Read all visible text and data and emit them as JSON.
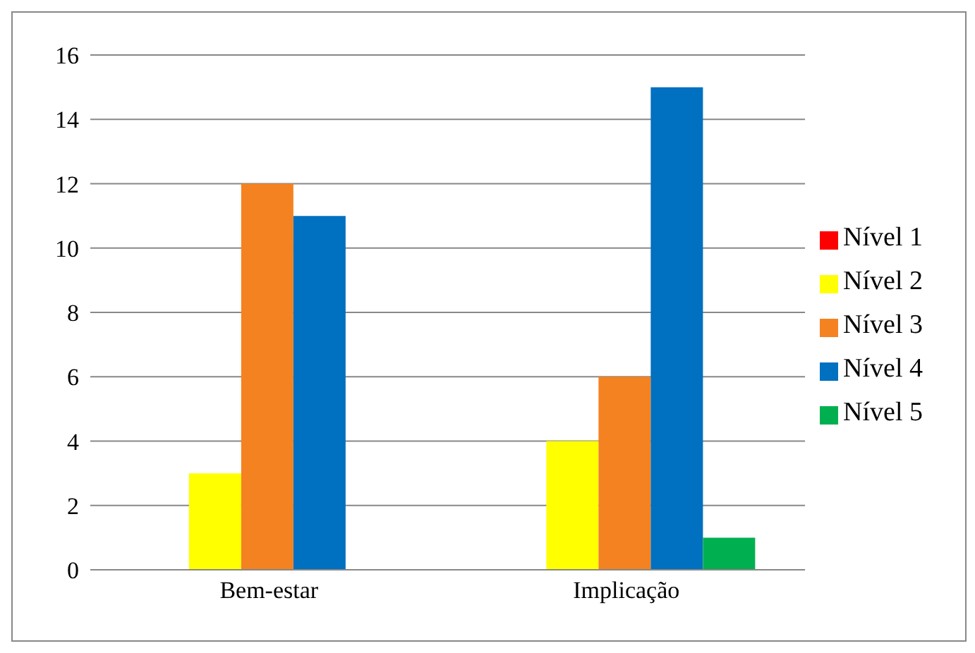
{
  "chart_data": {
    "type": "bar",
    "categories": [
      "Bem-estar",
      "Implicação"
    ],
    "series": [
      {
        "name": "Nível 1",
        "color": "#ff0000",
        "values": [
          0,
          0
        ]
      },
      {
        "name": "Nível 2",
        "color": "#ffff00",
        "values": [
          3,
          4
        ]
      },
      {
        "name": "Nível 3",
        "color": "#f58220",
        "values": [
          12,
          6
        ]
      },
      {
        "name": "Nível 4",
        "color": "#0070c0",
        "values": [
          11,
          15
        ]
      },
      {
        "name": "Nível 5",
        "color": "#00b050",
        "values": [
          0,
          1
        ]
      }
    ],
    "ylim": [
      0,
      16
    ],
    "yticks": [
      0,
      2,
      4,
      6,
      8,
      10,
      12,
      14,
      16
    ],
    "grid": "y",
    "legend": "right"
  }
}
